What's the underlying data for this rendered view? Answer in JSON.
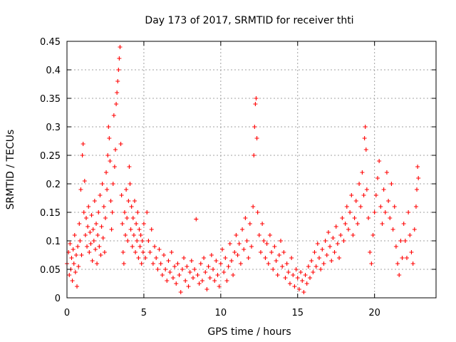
{
  "chart_data": {
    "type": "scatter",
    "title": "Day 173 of 2017, SRMTID for receiver thti",
    "xlabel": "GPS time / hours",
    "ylabel": "SRMTID / TECUs",
    "xlim": [
      0,
      24
    ],
    "ylim": [
      0,
      0.45
    ],
    "xticks": [
      0,
      5,
      10,
      15,
      20
    ],
    "xtick_labels": [
      "0",
      "5",
      "10",
      "15",
      "20"
    ],
    "yticks": [
      0,
      0.05,
      0.1,
      0.15,
      0.2,
      0.25,
      0.3,
      0.35,
      0.4,
      0.45
    ],
    "ytick_labels": [
      "0",
      "0.05",
      "0.1",
      "0.15",
      "0.2",
      "0.25",
      "0.3",
      "0.35",
      "0.4",
      "0.45"
    ],
    "grid": true,
    "marker": "plus",
    "color": "#ff0000",
    "series": [
      {
        "points": [
          [
            0.0,
            0.06
          ],
          [
            0.1,
            0.08
          ],
          [
            0.15,
            0.04
          ],
          [
            0.2,
            0.095
          ],
          [
            0.25,
            0.05
          ],
          [
            0.3,
            0.07
          ],
          [
            0.35,
            0.03
          ],
          [
            0.4,
            0.085
          ],
          [
            0.45,
            0.06
          ],
          [
            0.5,
            0.11
          ],
          [
            0.55,
            0.045
          ],
          [
            0.6,
            0.075
          ],
          [
            0.65,
            0.02
          ],
          [
            0.7,
            0.09
          ],
          [
            0.75,
            0.055
          ],
          [
            0.8,
            0.13
          ],
          [
            0.85,
            0.1
          ],
          [
            0.9,
            0.19
          ],
          [
            0.95,
            0.075
          ],
          [
            1.0,
            0.25
          ],
          [
            1.05,
            0.27
          ],
          [
            1.1,
            0.15
          ],
          [
            1.15,
            0.205
          ],
          [
            1.2,
            0.11
          ],
          [
            1.25,
            0.14
          ],
          [
            1.3,
            0.09
          ],
          [
            1.35,
            0.125
          ],
          [
            1.4,
            0.16
          ],
          [
            1.45,
            0.08
          ],
          [
            1.5,
            0.115
          ],
          [
            1.55,
            0.095
          ],
          [
            1.6,
            0.145
          ],
          [
            1.65,
            0.065
          ],
          [
            1.7,
            0.12
          ],
          [
            1.75,
            0.1
          ],
          [
            1.8,
            0.17
          ],
          [
            1.85,
            0.085
          ],
          [
            1.9,
            0.13
          ],
          [
            1.95,
            0.06
          ],
          [
            2.0,
            0.11
          ],
          [
            2.05,
            0.15
          ],
          [
            2.1,
            0.09
          ],
          [
            2.15,
            0.18
          ],
          [
            2.2,
            0.075
          ],
          [
            2.25,
            0.125
          ],
          [
            2.3,
            0.2
          ],
          [
            2.35,
            0.105
          ],
          [
            2.4,
            0.16
          ],
          [
            2.45,
            0.08
          ],
          [
            2.5,
            0.14
          ],
          [
            2.55,
            0.22
          ],
          [
            2.6,
            0.19
          ],
          [
            2.65,
            0.25
          ],
          [
            2.7,
            0.3
          ],
          [
            2.75,
            0.28
          ],
          [
            2.8,
            0.24
          ],
          [
            2.85,
            0.17
          ],
          [
            2.9,
            0.12
          ],
          [
            2.95,
            0.15
          ],
          [
            3.0,
            0.2
          ],
          [
            3.05,
            0.32
          ],
          [
            3.1,
            0.23
          ],
          [
            3.15,
            0.26
          ],
          [
            3.2,
            0.34
          ],
          [
            3.25,
            0.36
          ],
          [
            3.3,
            0.38
          ],
          [
            3.35,
            0.4
          ],
          [
            3.4,
            0.42
          ],
          [
            3.45,
            0.44
          ],
          [
            3.5,
            0.27
          ],
          [
            3.55,
            0.18
          ],
          [
            3.6,
            0.13
          ],
          [
            3.65,
            0.08
          ],
          [
            3.7,
            0.06
          ],
          [
            3.75,
            0.15
          ],
          [
            3.8,
            0.11
          ],
          [
            3.85,
            0.19
          ],
          [
            3.9,
            0.14
          ],
          [
            3.95,
            0.1
          ],
          [
            4.0,
            0.17
          ],
          [
            4.05,
            0.23
          ],
          [
            4.1,
            0.2
          ],
          [
            4.15,
            0.12
          ],
          [
            4.2,
            0.16
          ],
          [
            4.25,
            0.09
          ],
          [
            4.3,
            0.14
          ],
          [
            4.35,
            0.11
          ],
          [
            4.4,
            0.17
          ],
          [
            4.45,
            0.08
          ],
          [
            4.5,
            0.13
          ],
          [
            4.55,
            0.1
          ],
          [
            4.6,
            0.15
          ],
          [
            4.65,
            0.07
          ],
          [
            4.7,
            0.12
          ],
          [
            4.75,
            0.09
          ],
          [
            4.8,
            0.11
          ],
          [
            4.85,
            0.06
          ],
          [
            4.9,
            0.1
          ],
          [
            4.95,
            0.08
          ],
          [
            5.0,
            0.13
          ],
          [
            5.1,
            0.07
          ],
          [
            5.2,
            0.15
          ],
          [
            5.3,
            0.1
          ],
          [
            5.4,
            0.08
          ],
          [
            5.5,
            0.12
          ],
          [
            5.6,
            0.06
          ],
          [
            5.7,
            0.09
          ],
          [
            5.8,
            0.07
          ],
          [
            5.9,
            0.05
          ],
          [
            6.0,
            0.085
          ],
          [
            6.1,
            0.06
          ],
          [
            6.2,
            0.04
          ],
          [
            6.3,
            0.075
          ],
          [
            6.4,
            0.05
          ],
          [
            6.5,
            0.03
          ],
          [
            6.6,
            0.065
          ],
          [
            6.7,
            0.045
          ],
          [
            6.8,
            0.08
          ],
          [
            6.9,
            0.035
          ],
          [
            7.0,
            0.055
          ],
          [
            7.1,
            0.025
          ],
          [
            7.2,
            0.06
          ],
          [
            7.3,
            0.04
          ],
          [
            7.4,
            0.01
          ],
          [
            7.5,
            0.05
          ],
          [
            7.6,
            0.07
          ],
          [
            7.7,
            0.03
          ],
          [
            7.8,
            0.055
          ],
          [
            7.9,
            0.02
          ],
          [
            8.0,
            0.045
          ],
          [
            8.1,
            0.065
          ],
          [
            8.2,
            0.035
          ],
          [
            8.3,
            0.05
          ],
          [
            8.4,
            0.138
          ],
          [
            8.5,
            0.04
          ],
          [
            8.6,
            0.025
          ],
          [
            8.7,
            0.06
          ],
          [
            8.8,
            0.03
          ],
          [
            8.9,
            0.07
          ],
          [
            9.0,
            0.045
          ],
          [
            9.1,
            0.015
          ],
          [
            9.2,
            0.055
          ],
          [
            9.3,
            0.035
          ],
          [
            9.4,
            0.075
          ],
          [
            9.5,
            0.05
          ],
          [
            9.6,
            0.03
          ],
          [
            9.7,
            0.065
          ],
          [
            9.8,
            0.04
          ],
          [
            9.9,
            0.02
          ],
          [
            10.0,
            0.06
          ],
          [
            10.1,
            0.085
          ],
          [
            10.2,
            0.045
          ],
          [
            10.3,
            0.07
          ],
          [
            10.4,
            0.03
          ],
          [
            10.5,
            0.055
          ],
          [
            10.6,
            0.095
          ],
          [
            10.7,
            0.065
          ],
          [
            10.8,
            0.04
          ],
          [
            10.9,
            0.08
          ],
          [
            11.0,
            0.11
          ],
          [
            11.1,
            0.075
          ],
          [
            11.2,
            0.095
          ],
          [
            11.3,
            0.06
          ],
          [
            11.4,
            0.12
          ],
          [
            11.5,
            0.085
          ],
          [
            11.6,
            0.14
          ],
          [
            11.7,
            0.1
          ],
          [
            11.8,
            0.07
          ],
          [
            11.9,
            0.13
          ],
          [
            12.0,
            0.09
          ],
          [
            12.1,
            0.16
          ],
          [
            12.15,
            0.25
          ],
          [
            12.2,
            0.3
          ],
          [
            12.25,
            0.34
          ],
          [
            12.3,
            0.35
          ],
          [
            12.35,
            0.28
          ],
          [
            12.4,
            0.15
          ],
          [
            12.5,
            0.11
          ],
          [
            12.6,
            0.08
          ],
          [
            12.7,
            0.13
          ],
          [
            12.8,
            0.1
          ],
          [
            12.9,
            0.07
          ],
          [
            13.0,
            0.095
          ],
          [
            13.1,
            0.06
          ],
          [
            13.2,
            0.11
          ],
          [
            13.3,
            0.08
          ],
          [
            13.4,
            0.05
          ],
          [
            13.5,
            0.09
          ],
          [
            13.6,
            0.065
          ],
          [
            13.7,
            0.04
          ],
          [
            13.8,
            0.075
          ],
          [
            13.9,
            0.1
          ],
          [
            14.0,
            0.055
          ],
          [
            14.1,
            0.08
          ],
          [
            14.2,
            0.035
          ],
          [
            14.3,
            0.06
          ],
          [
            14.4,
            0.045
          ],
          [
            14.5,
            0.025
          ],
          [
            14.6,
            0.07
          ],
          [
            14.7,
            0.04
          ],
          [
            14.8,
            0.02
          ],
          [
            14.9,
            0.05
          ],
          [
            15.0,
            0.035
          ],
          [
            15.1,
            0.015
          ],
          [
            15.2,
            0.045
          ],
          [
            15.3,
            0.03
          ],
          [
            15.4,
            0.01
          ],
          [
            15.5,
            0.04
          ],
          [
            15.6,
            0.025
          ],
          [
            15.7,
            0.055
          ],
          [
            15.8,
            0.035
          ],
          [
            15.9,
            0.065
          ],
          [
            16.0,
            0.045
          ],
          [
            16.1,
            0.08
          ],
          [
            16.2,
            0.055
          ],
          [
            16.3,
            0.095
          ],
          [
            16.4,
            0.07
          ],
          [
            16.5,
            0.05
          ],
          [
            16.6,
            0.085
          ],
          [
            16.7,
            0.06
          ],
          [
            16.8,
            0.1
          ],
          [
            16.9,
            0.075
          ],
          [
            17.0,
            0.115
          ],
          [
            17.1,
            0.09
          ],
          [
            17.2,
            0.065
          ],
          [
            17.3,
            0.105
          ],
          [
            17.4,
            0.08
          ],
          [
            17.5,
            0.125
          ],
          [
            17.6,
            0.095
          ],
          [
            17.7,
            0.07
          ],
          [
            17.8,
            0.11
          ],
          [
            17.9,
            0.14
          ],
          [
            18.0,
            0.1
          ],
          [
            18.1,
            0.13
          ],
          [
            18.2,
            0.16
          ],
          [
            18.3,
            0.12
          ],
          [
            18.4,
            0.15
          ],
          [
            18.5,
            0.18
          ],
          [
            18.6,
            0.11
          ],
          [
            18.7,
            0.14
          ],
          [
            18.8,
            0.17
          ],
          [
            18.9,
            0.13
          ],
          [
            19.0,
            0.2
          ],
          [
            19.1,
            0.16
          ],
          [
            19.2,
            0.22
          ],
          [
            19.3,
            0.18
          ],
          [
            19.35,
            0.28
          ],
          [
            19.4,
            0.3
          ],
          [
            19.45,
            0.26
          ],
          [
            19.5,
            0.19
          ],
          [
            19.6,
            0.14
          ],
          [
            19.7,
            0.08
          ],
          [
            19.8,
            0.06
          ],
          [
            19.9,
            0.11
          ],
          [
            20.0,
            0.15
          ],
          [
            20.1,
            0.18
          ],
          [
            20.2,
            0.21
          ],
          [
            20.3,
            0.24
          ],
          [
            20.4,
            0.16
          ],
          [
            20.5,
            0.13
          ],
          [
            20.6,
            0.19
          ],
          [
            20.7,
            0.15
          ],
          [
            20.8,
            0.22
          ],
          [
            20.9,
            0.17
          ],
          [
            21.0,
            0.14
          ],
          [
            21.1,
            0.2
          ],
          [
            21.2,
            0.12
          ],
          [
            21.3,
            0.16
          ],
          [
            21.4,
            0.09
          ],
          [
            21.5,
            0.06
          ],
          [
            21.6,
            0.04
          ],
          [
            21.7,
            0.1
          ],
          [
            21.8,
            0.07
          ],
          [
            21.9,
            0.13
          ],
          [
            22.0,
            0.1
          ],
          [
            22.1,
            0.07
          ],
          [
            22.2,
            0.15
          ],
          [
            22.3,
            0.11
          ],
          [
            22.4,
            0.08
          ],
          [
            22.5,
            0.06
          ],
          [
            22.6,
            0.12
          ],
          [
            22.7,
            0.16
          ],
          [
            22.75,
            0.19
          ],
          [
            22.8,
            0.23
          ],
          [
            22.85,
            0.21
          ]
        ]
      }
    ]
  }
}
